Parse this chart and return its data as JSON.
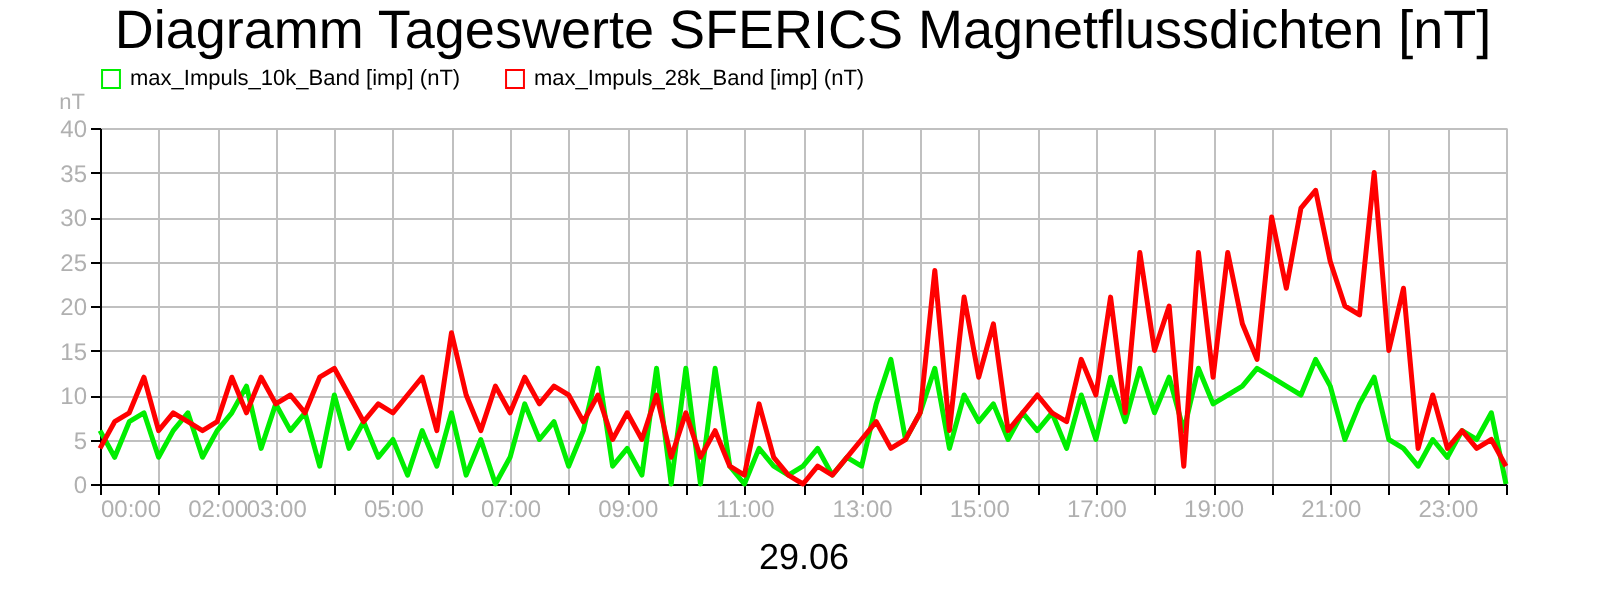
{
  "chart_data": {
    "type": "line",
    "title": "Diagramm Tageswerte SFERICS Magnetflussdichten [nT]",
    "xlabel": "29.06",
    "ylabel": "nT",
    "x": [
      0,
      0.25,
      0.5,
      0.75,
      1,
      1.25,
      1.5,
      1.75,
      2,
      2.25,
      2.5,
      2.75,
      3,
      3.25,
      3.5,
      3.75,
      4,
      4.25,
      4.5,
      4.75,
      5,
      5.25,
      5.5,
      5.75,
      6,
      6.25,
      6.5,
      6.75,
      7,
      7.25,
      7.5,
      7.75,
      8,
      8.25,
      8.5,
      8.75,
      9,
      9.25,
      9.5,
      9.75,
      10,
      10.25,
      10.5,
      10.75,
      11,
      11.25,
      11.5,
      11.75,
      12,
      12.25,
      12.5,
      12.75,
      13,
      13.25,
      13.5,
      13.75,
      14,
      14.25,
      14.5,
      14.75,
      15,
      15.25,
      15.5,
      15.75,
      16,
      16.25,
      16.5,
      16.75,
      17,
      17.25,
      17.5,
      17.75,
      18,
      18.25,
      18.5,
      18.75,
      19,
      19.25,
      19.5,
      19.75,
      20,
      20.25,
      20.5,
      20.75,
      21,
      21.25,
      21.5,
      21.75,
      22,
      22.25,
      22.5,
      22.75,
      23,
      23.25,
      23.5,
      23.75,
      24
    ],
    "series": [
      {
        "name": "max_Impuls_10k_Band [imp] (nT)",
        "color": "#00ee00",
        "values": [
          6,
          3,
          7,
          8,
          3,
          6,
          8,
          3,
          6,
          8,
          11,
          4,
          9,
          6,
          8,
          2,
          10,
          4,
          7,
          3,
          5,
          1,
          6,
          2,
          8,
          1,
          5,
          0,
          3,
          9,
          5,
          7,
          2,
          6,
          13,
          2,
          4,
          1,
          13,
          0,
          13,
          0,
          13,
          2,
          0,
          4,
          2,
          1,
          2,
          4,
          1,
          3,
          2,
          9,
          14,
          5,
          8,
          13,
          4,
          10,
          7,
          9,
          5,
          8,
          6,
          8,
          4,
          10,
          5,
          12,
          7,
          13,
          8,
          12,
          6,
          13,
          9,
          10,
          11,
          13,
          12,
          11,
          10,
          14,
          11,
          5,
          9,
          12,
          5,
          4,
          2,
          5,
          3,
          6,
          5,
          8,
          0
        ]
      },
      {
        "name": "max_Impuls_28k_Band [imp] (nT)",
        "color": "#ff0000",
        "values": [
          4,
          7,
          8,
          12,
          6,
          8,
          7,
          6,
          7,
          12,
          8,
          12,
          9,
          10,
          8,
          12,
          13,
          10,
          7,
          9,
          8,
          10,
          12,
          6,
          17,
          10,
          6,
          11,
          8,
          12,
          9,
          11,
          10,
          7,
          10,
          5,
          8,
          5,
          10,
          3,
          8,
          3,
          6,
          2,
          1,
          9,
          3,
          1,
          0,
          2,
          1,
          3,
          5,
          7,
          4,
          5,
          8,
          24,
          6,
          21,
          12,
          18,
          6,
          8,
          10,
          8,
          7,
          14,
          10,
          21,
          8,
          26,
          15,
          20,
          2,
          26,
          12,
          26,
          18,
          14,
          30,
          22,
          31,
          33,
          25,
          20,
          19,
          35,
          15,
          22,
          4,
          10,
          4,
          6,
          4,
          5,
          2
        ]
      }
    ],
    "xlim": [
      0,
      24
    ],
    "xticks": [
      {
        "value": 0,
        "label": "00:00"
      },
      {
        "value": 1,
        "label": null
      },
      {
        "value": 2,
        "label": "02:00"
      },
      {
        "value": 3,
        "label": "03:00"
      },
      {
        "value": 4,
        "label": null
      },
      {
        "value": 5,
        "label": "05:00"
      },
      {
        "value": 6,
        "label": null
      },
      {
        "value": 7,
        "label": "07:00"
      },
      {
        "value": 8,
        "label": null
      },
      {
        "value": 9,
        "label": "09:00"
      },
      {
        "value": 10,
        "label": null
      },
      {
        "value": 11,
        "label": "11:00"
      },
      {
        "value": 12,
        "label": null
      },
      {
        "value": 13,
        "label": "13:00"
      },
      {
        "value": 14,
        "label": null
      },
      {
        "value": 15,
        "label": "15:00"
      },
      {
        "value": 16,
        "label": null
      },
      {
        "value": 17,
        "label": "17:00"
      },
      {
        "value": 18,
        "label": null
      },
      {
        "value": 19,
        "label": "19:00"
      },
      {
        "value": 20,
        "label": null
      },
      {
        "value": 21,
        "label": "21:00"
      },
      {
        "value": 22,
        "label": null
      },
      {
        "value": 23,
        "label": "23:00"
      },
      {
        "value": 24,
        "label": null
      }
    ],
    "ylim": [
      0,
      40
    ],
    "yticks": [
      0,
      5,
      10,
      15,
      20,
      25,
      30,
      35,
      40
    ],
    "grid": true,
    "legend": "top left",
    "marker": "none",
    "line_style": "solid"
  }
}
